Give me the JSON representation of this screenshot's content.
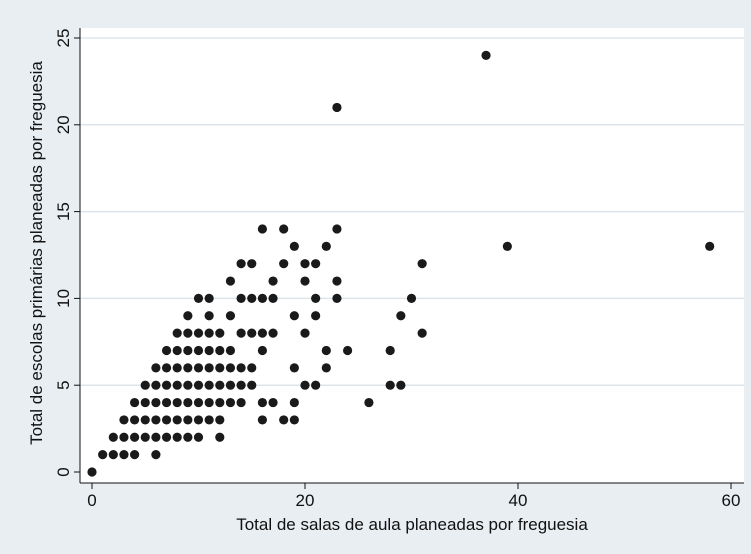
{
  "chart_data": {
    "type": "scatter",
    "title": "",
    "xlabel": "Total de salas de aula planeadas por freguesia",
    "ylabel": "Total de escolas primárias planeadas por freguesia",
    "xlim": [
      0,
      60
    ],
    "ylim": [
      0,
      25
    ],
    "xticks": [
      "0",
      "20",
      "40",
      "60"
    ],
    "yticks": [
      "0",
      "5",
      "10",
      "15",
      "20",
      "25"
    ],
    "grid": "horizontal",
    "legend": "none",
    "colors": {
      "background": "#e8eef2",
      "plot_area": "#ffffff",
      "marker": "#1a1a1a",
      "grid": "#dde5ea"
    },
    "points": [
      [
        0,
        0
      ],
      [
        1,
        1
      ],
      [
        2,
        1
      ],
      [
        2,
        2
      ],
      [
        3,
        1
      ],
      [
        3,
        2
      ],
      [
        3,
        3
      ],
      [
        4,
        1
      ],
      [
        4,
        2
      ],
      [
        4,
        3
      ],
      [
        4,
        4
      ],
      [
        5,
        2
      ],
      [
        5,
        3
      ],
      [
        5,
        4
      ],
      [
        5,
        5
      ],
      [
        6,
        1
      ],
      [
        6,
        2
      ],
      [
        6,
        3
      ],
      [
        6,
        4
      ],
      [
        6,
        5
      ],
      [
        6,
        6
      ],
      [
        7,
        2
      ],
      [
        7,
        3
      ],
      [
        7,
        4
      ],
      [
        7,
        5
      ],
      [
        7,
        6
      ],
      [
        7,
        7
      ],
      [
        8,
        2
      ],
      [
        8,
        3
      ],
      [
        8,
        4
      ],
      [
        8,
        5
      ],
      [
        8,
        6
      ],
      [
        8,
        7
      ],
      [
        8,
        8
      ],
      [
        9,
        2
      ],
      [
        9,
        3
      ],
      [
        9,
        4
      ],
      [
        9,
        5
      ],
      [
        9,
        6
      ],
      [
        9,
        7
      ],
      [
        9,
        8
      ],
      [
        9,
        9
      ],
      [
        10,
        2
      ],
      [
        10,
        3
      ],
      [
        10,
        4
      ],
      [
        10,
        5
      ],
      [
        10,
        6
      ],
      [
        10,
        7
      ],
      [
        10,
        8
      ],
      [
        10,
        10
      ],
      [
        11,
        3
      ],
      [
        11,
        4
      ],
      [
        11,
        5
      ],
      [
        11,
        6
      ],
      [
        11,
        7
      ],
      [
        11,
        8
      ],
      [
        11,
        9
      ],
      [
        11,
        10
      ],
      [
        12,
        2
      ],
      [
        12,
        3
      ],
      [
        12,
        4
      ],
      [
        12,
        5
      ],
      [
        12,
        6
      ],
      [
        12,
        7
      ],
      [
        12,
        8
      ],
      [
        13,
        4
      ],
      [
        13,
        5
      ],
      [
        13,
        6
      ],
      [
        13,
        7
      ],
      [
        13,
        9
      ],
      [
        13,
        11
      ],
      [
        14,
        4
      ],
      [
        14,
        5
      ],
      [
        14,
        6
      ],
      [
        14,
        8
      ],
      [
        14,
        10
      ],
      [
        14,
        12
      ],
      [
        15,
        5
      ],
      [
        15,
        6
      ],
      [
        15,
        8
      ],
      [
        15,
        10
      ],
      [
        15,
        12
      ],
      [
        16,
        3
      ],
      [
        16,
        4
      ],
      [
        16,
        7
      ],
      [
        16,
        8
      ],
      [
        16,
        10
      ],
      [
        16,
        14
      ],
      [
        17,
        4
      ],
      [
        17,
        8
      ],
      [
        17,
        10
      ],
      [
        17,
        11
      ],
      [
        18,
        3
      ],
      [
        18,
        12
      ],
      [
        18,
        14
      ],
      [
        19,
        3
      ],
      [
        19,
        4
      ],
      [
        19,
        6
      ],
      [
        19,
        9
      ],
      [
        19,
        13
      ],
      [
        20,
        5
      ],
      [
        20,
        8
      ],
      [
        20,
        11
      ],
      [
        20,
        12
      ],
      [
        21,
        5
      ],
      [
        21,
        9
      ],
      [
        21,
        10
      ],
      [
        21,
        12
      ],
      [
        22,
        6
      ],
      [
        22,
        7
      ],
      [
        22,
        13
      ],
      [
        23,
        10
      ],
      [
        23,
        11
      ],
      [
        23,
        14
      ],
      [
        23,
        21
      ],
      [
        24,
        7
      ],
      [
        26,
        4
      ],
      [
        28,
        5
      ],
      [
        28,
        7
      ],
      [
        29,
        5
      ],
      [
        29,
        9
      ],
      [
        30,
        10
      ],
      [
        31,
        8
      ],
      [
        31,
        12
      ],
      [
        37,
        24
      ],
      [
        39,
        13
      ],
      [
        58,
        13
      ]
    ]
  }
}
